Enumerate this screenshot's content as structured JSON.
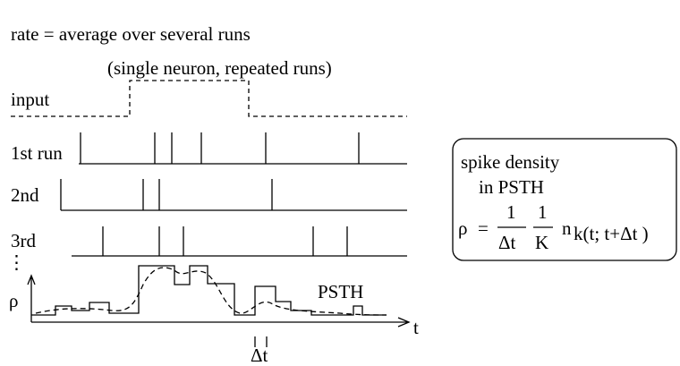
{
  "header": {
    "line1": "rate =  average over several runs",
    "line2": "(single neuron, repeated runs)"
  },
  "rows": {
    "input": "input",
    "run1": "1st run",
    "run2": "2nd",
    "run3": "3rd",
    "more": "⋮"
  },
  "axis": {
    "y": "ρ",
    "x": "t",
    "bin": "Δt",
    "curve": "PSTH"
  },
  "box": {
    "line1": "spike density",
    "line2": "in PSTH",
    "formula": {
      "lhs": "ρ",
      "eq": "=",
      "num1": "1",
      "den1": "Δt",
      "num2": "1",
      "den2": "K",
      "n": "n",
      "sub": "k(t; t+Δt )"
    }
  }
}
